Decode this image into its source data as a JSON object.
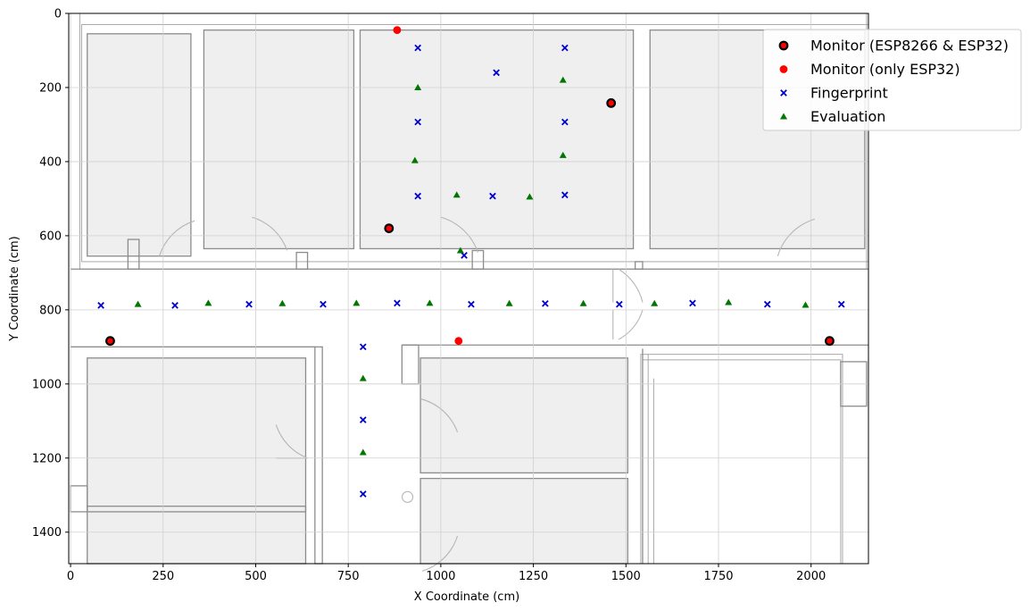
{
  "chart_data": {
    "type": "scatter",
    "title": "",
    "xlabel": "X Coordinate (cm)",
    "ylabel": "Y Coordinate (cm)",
    "xlim": [
      -5,
      2155
    ],
    "ylim": [
      1485,
      0
    ],
    "y_inverted": true,
    "grid": true,
    "legend_position": "upper-right",
    "x_ticks": [
      0,
      250,
      500,
      750,
      1000,
      1250,
      1500,
      1750,
      2000
    ],
    "y_ticks": [
      0,
      200,
      400,
      600,
      800,
      1000,
      1200,
      1400
    ],
    "series": [
      {
        "name": "Monitor (ESP8266 & ESP32)",
        "marker": "circle-outlined",
        "color": "#ff0000",
        "edge_color": "#000000",
        "points": [
          [
            107,
            884
          ],
          [
            860,
            580
          ],
          [
            1460,
            242
          ],
          [
            2050,
            884
          ]
        ]
      },
      {
        "name": "Monitor (only ESP32)",
        "marker": "circle",
        "color": "#ff0000",
        "points": [
          [
            882,
            45
          ],
          [
            1048,
            884
          ]
        ]
      },
      {
        "name": "Fingerprint",
        "marker": "x",
        "color": "#0000cc",
        "points": [
          [
            938,
            93
          ],
          [
            1150,
            160
          ],
          [
            1335,
            93
          ],
          [
            938,
            293
          ],
          [
            1335,
            293
          ],
          [
            938,
            493
          ],
          [
            1140,
            493
          ],
          [
            1335,
            490
          ],
          [
            1063,
            653
          ],
          [
            82,
            788
          ],
          [
            282,
            788
          ],
          [
            482,
            785
          ],
          [
            682,
            785
          ],
          [
            882,
            782
          ],
          [
            1082,
            785
          ],
          [
            1282,
            783
          ],
          [
            1482,
            785
          ],
          [
            1680,
            782
          ],
          [
            1882,
            785
          ],
          [
            2082,
            785
          ],
          [
            790,
            900
          ],
          [
            790,
            1097
          ],
          [
            790,
            1297
          ]
        ]
      },
      {
        "name": "Evaluation",
        "marker": "triangle",
        "color": "#007700",
        "points": [
          [
            938,
            200
          ],
          [
            1330,
            180
          ],
          [
            930,
            397
          ],
          [
            1330,
            383
          ],
          [
            1043,
            490
          ],
          [
            1240,
            495
          ],
          [
            1053,
            640
          ],
          [
            182,
            785
          ],
          [
            372,
            782
          ],
          [
            572,
            783
          ],
          [
            772,
            782
          ],
          [
            970,
            782
          ],
          [
            1185,
            783
          ],
          [
            1385,
            783
          ],
          [
            1577,
            783
          ],
          [
            1777,
            780
          ],
          [
            1985,
            787
          ],
          [
            790,
            985
          ],
          [
            790,
            1185
          ]
        ]
      }
    ]
  }
}
